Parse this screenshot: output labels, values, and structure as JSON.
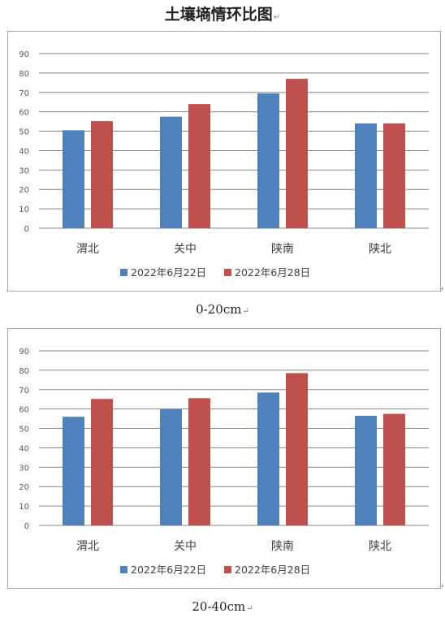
{
  "doc_title": "土壤墒情环比图",
  "paragraph_mark": "↵",
  "colors": {
    "series1": "#4f81bd",
    "series2": "#c0504d",
    "grid": "#868686",
    "axis_text": "#595959"
  },
  "chart_data": [
    {
      "type": "bar",
      "caption": "0-20cm",
      "categories": [
        "渭北",
        "关中",
        "陕南",
        "陕北"
      ],
      "series": [
        {
          "name": "2022年6月22日",
          "values": [
            50.5,
            57.5,
            69.5,
            54
          ]
        },
        {
          "name": "2022年6月28日",
          "values": [
            55.2,
            64,
            77,
            54
          ]
        }
      ],
      "ylim": [
        0,
        90
      ],
      "yticks": [
        0,
        10,
        20,
        30,
        40,
        50,
        60,
        70,
        80,
        90
      ],
      "grid": true,
      "legend": "bottom"
    },
    {
      "type": "bar",
      "caption": "20-40cm",
      "categories": [
        "渭北",
        "关中",
        "陕南",
        "陕北"
      ],
      "series": [
        {
          "name": "2022年6月22日",
          "values": [
            56,
            60,
            68.5,
            56.5
          ]
        },
        {
          "name": "2022年6月28日",
          "values": [
            65.2,
            65.6,
            78.5,
            57.5
          ]
        }
      ],
      "ylim": [
        0,
        90
      ],
      "yticks": [
        0,
        10,
        20,
        30,
        40,
        50,
        60,
        70,
        80,
        90
      ],
      "grid": true,
      "legend": "bottom"
    }
  ]
}
